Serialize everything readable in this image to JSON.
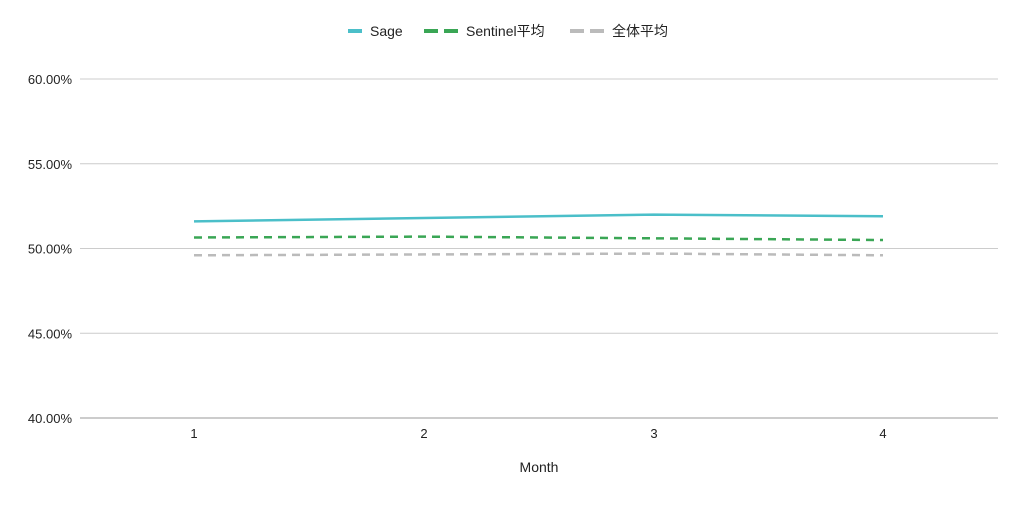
{
  "chart_data": {
    "type": "line",
    "title": "",
    "xlabel": "Month",
    "ylabel": "",
    "categories": [
      "1",
      "2",
      "3",
      "4"
    ],
    "ylim": [
      40,
      60
    ],
    "yticks": [
      60,
      55,
      50,
      45,
      40
    ],
    "ytick_labels": [
      "60.00%",
      "55.00%",
      "50.00%",
      "45.00%",
      "40.00%"
    ],
    "grid": true,
    "legend_position": "top",
    "series": [
      {
        "name": "Sage",
        "values": [
          51.6,
          51.8,
          52.0,
          51.9
        ],
        "color": "#4bbfc9",
        "style": "solid"
      },
      {
        "name": "Sentinel平均",
        "values": [
          50.65,
          50.7,
          50.6,
          50.5
        ],
        "color": "#3aa655",
        "style": "dashed"
      },
      {
        "name": "全体平均",
        "values": [
          49.6,
          49.65,
          49.7,
          49.6
        ],
        "color": "#bbbbbb",
        "style": "dashed"
      }
    ]
  }
}
